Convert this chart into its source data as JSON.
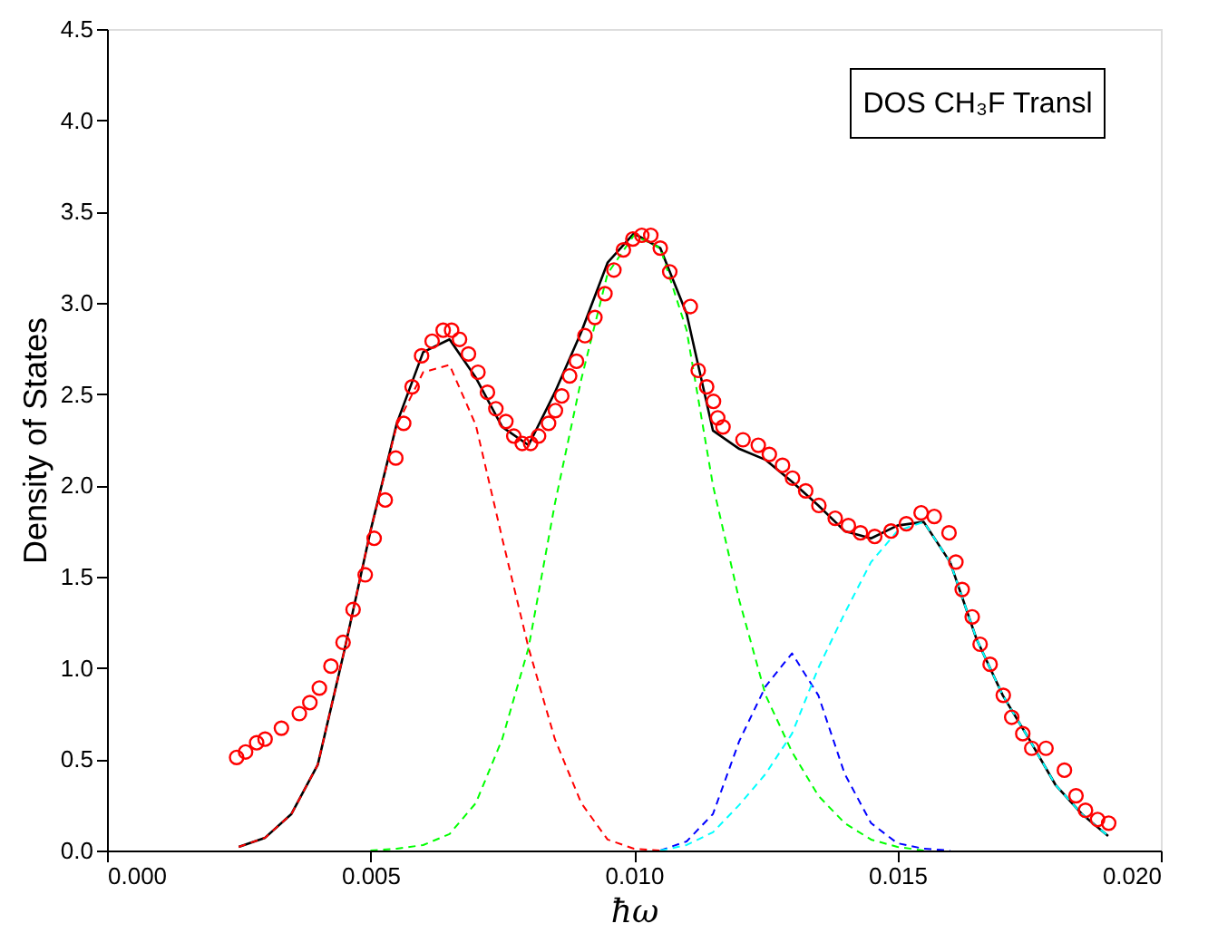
{
  "chart_data": {
    "type": "line",
    "xlabel": "ħω",
    "ylabel": "Density of States",
    "annotations": [
      "DOS CH₃F Transl"
    ],
    "xlim": [
      0,
      0.02
    ],
    "ylim": [
      0,
      4.5
    ],
    "xticks": [
      {
        "value": 0,
        "label": "0.000"
      },
      {
        "value": 0.005,
        "label": "0.005"
      },
      {
        "value": 0.01,
        "label": "0.010"
      },
      {
        "value": 0.015,
        "label": "0.015"
      },
      {
        "value": 0.02,
        "label": "0.020"
      }
    ],
    "yticks": [
      {
        "value": 0,
        "label": "0.0"
      },
      {
        "value": 0.5,
        "label": "0.5"
      },
      {
        "value": 1,
        "label": "1.0"
      },
      {
        "value": 1.5,
        "label": "1.5"
      },
      {
        "value": 2,
        "label": "2.0"
      },
      {
        "value": 2.5,
        "label": "2.5"
      },
      {
        "value": 3,
        "label": "3.0"
      },
      {
        "value": 3.5,
        "label": "3.5"
      },
      {
        "value": 4,
        "label": "4.0"
      },
      {
        "value": 4.5,
        "label": "4.5"
      }
    ],
    "grid": false,
    "x": [
      0.0025,
      0.003,
      0.0035,
      0.004,
      0.0045,
      0.005,
      0.0055,
      0.006,
      0.0065,
      0.007,
      0.0075,
      0.008,
      0.0085,
      0.009,
      0.0095,
      0.01,
      0.0105,
      0.011,
      0.0115,
      0.012,
      0.0125,
      0.013,
      0.0135,
      0.014,
      0.0145,
      0.015,
      0.0155,
      0.016,
      0.0165,
      0.017,
      0.0175,
      0.018,
      0.0185,
      0.019
    ],
    "series": [
      {
        "type": "scatter",
        "marker": "circle",
        "color": "#ff0000",
        "x": [
          0.00246,
          0.00263,
          0.00284,
          0.003,
          0.00331,
          0.00365,
          0.00385,
          0.00403,
          0.00425,
          0.00448,
          0.00467,
          0.0049,
          0.00507,
          0.00528,
          0.00548,
          0.00563,
          0.00579,
          0.00597,
          0.00617,
          0.00638,
          0.00654,
          0.00669,
          0.00686,
          0.00704,
          0.00722,
          0.00738,
          0.00757,
          0.00772,
          0.00788,
          0.00804,
          0.00819,
          0.00838,
          0.00851,
          0.00863,
          0.00878,
          0.00891,
          0.00907,
          0.00926,
          0.00945,
          0.00962,
          0.0098,
          0.00998,
          0.01015,
          0.01032,
          0.0105,
          0.01068,
          0.01107,
          0.01122,
          0.01138,
          0.01151,
          0.01159,
          0.01169,
          0.01207,
          0.01236,
          0.01257,
          0.01282,
          0.01301,
          0.01326,
          0.01351,
          0.01382,
          0.01407,
          0.0143,
          0.01457,
          0.01488,
          0.01517,
          0.01545,
          0.0157,
          0.01598,
          0.01611,
          0.01623,
          0.01642,
          0.01657,
          0.01676,
          0.01701,
          0.01717,
          0.01738,
          0.01755,
          0.01782,
          0.01817,
          0.01839,
          0.01857,
          0.0188,
          0.01901
        ],
        "values": [
          0.51,
          0.54,
          0.59,
          0.61,
          0.67,
          0.75,
          0.81,
          0.89,
          1.01,
          1.14,
          1.32,
          1.51,
          1.71,
          1.92,
          2.15,
          2.34,
          2.54,
          2.71,
          2.79,
          2.85,
          2.85,
          2.8,
          2.72,
          2.62,
          2.51,
          2.42,
          2.35,
          2.27,
          2.23,
          2.23,
          2.27,
          2.34,
          2.41,
          2.49,
          2.6,
          2.68,
          2.82,
          2.92,
          3.05,
          3.18,
          3.29,
          3.35,
          3.37,
          3.37,
          3.3,
          3.17,
          2.98,
          2.63,
          2.54,
          2.46,
          2.37,
          2.32,
          2.25,
          2.22,
          2.17,
          2.11,
          2.04,
          1.97,
          1.89,
          1.82,
          1.78,
          1.74,
          1.72,
          1.75,
          1.79,
          1.85,
          1.83,
          1.74,
          1.58,
          1.43,
          1.28,
          1.13,
          1.02,
          0.85,
          0.73,
          0.64,
          0.56,
          0.56,
          0.44,
          0.3,
          0.22,
          0.17,
          0.15
        ]
      },
      {
        "type": "line",
        "line_style": "solid",
        "color": "#000000",
        "values": [
          0.02,
          0.07,
          0.2,
          0.47,
          1.09,
          1.75,
          2.34,
          2.73,
          2.8,
          2.59,
          2.32,
          2.22,
          2.51,
          2.84,
          3.22,
          3.38,
          3.3,
          2.94,
          2.3,
          2.2,
          2.14,
          2.02,
          1.89,
          1.75,
          1.71,
          1.78,
          1.8,
          1.58,
          1.16,
          0.85,
          0.61,
          0.36,
          0.2,
          0.08
        ]
      },
      {
        "type": "line",
        "line_style": "dashed",
        "color": "#ff0000",
        "values": [
          0.02,
          0.07,
          0.2,
          0.47,
          1.09,
          1.75,
          2.33,
          2.62,
          2.66,
          2.33,
          1.71,
          1.11,
          0.61,
          0.26,
          0.06,
          0.01,
          0,
          null,
          null,
          null,
          null,
          null,
          null,
          null,
          null,
          null,
          null,
          null,
          null,
          null,
          null,
          null,
          null,
          null
        ]
      },
      {
        "type": "line",
        "line_style": "dashed",
        "color": "#00ff00",
        "values": [
          null,
          null,
          null,
          null,
          null,
          0,
          0.01,
          0.03,
          0.09,
          0.26,
          0.61,
          1.11,
          1.9,
          2.58,
          3.16,
          3.37,
          3.3,
          2.85,
          2.0,
          1.37,
          0.85,
          0.54,
          0.3,
          0.15,
          0.06,
          0.02,
          0,
          null,
          null,
          null,
          null,
          null,
          null,
          null
        ]
      },
      {
        "type": "line",
        "line_style": "dashed",
        "color": "#0000ff",
        "values": [
          null,
          null,
          null,
          null,
          null,
          null,
          null,
          null,
          null,
          null,
          null,
          null,
          null,
          null,
          null,
          null,
          0,
          0.05,
          0.2,
          0.6,
          0.9,
          1.08,
          0.85,
          0.42,
          0.15,
          0.04,
          0.01,
          0,
          null,
          null,
          null,
          null,
          null,
          null
        ]
      },
      {
        "type": "line",
        "line_style": "dashed",
        "color": "#00ffff",
        "values": [
          null,
          null,
          null,
          null,
          null,
          null,
          null,
          null,
          null,
          null,
          null,
          null,
          null,
          null,
          null,
          null,
          0,
          0.03,
          0.1,
          0.25,
          0.42,
          0.64,
          1.0,
          1.3,
          1.58,
          1.75,
          1.8,
          1.58,
          1.16,
          0.85,
          0.61,
          0.36,
          0.2,
          0.08
        ]
      }
    ]
  }
}
